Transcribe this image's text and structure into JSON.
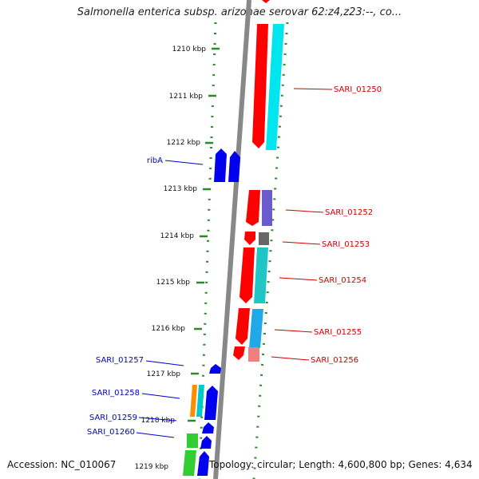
{
  "title": "Salmonella enterica subsp. arizonae serovar 62:z4,z23:--, co...",
  "accession": "Accession: NC_010067",
  "topology": "Topology: circular; Length: 4,600,800 bp; Genes: 4,634",
  "ticks": [
    "1210 kbp",
    "1211 kbp",
    "1212 kbp",
    "1213 kbp",
    "1214 kbp",
    "1215 kbp",
    "1216 kbp",
    "1217 kbp",
    "1218 kbp",
    "1219 kbp"
  ],
  "labels_right": [
    "SARI_01250",
    "SARI_01252",
    "SARI_01253",
    "SARI_01254",
    "SARI_01255",
    "SARI_01256"
  ],
  "labels_left": [
    "ribA",
    "SARI_01257",
    "SARI_01258",
    "SARI_01259",
    "SARI_01260"
  ],
  "colors": {
    "backbone": "#888888",
    "tick": "#2a8a2a",
    "label_right": "#cc0000",
    "label_left": "#0000cc",
    "forward_gene": "#ff0000",
    "reverse_gene": "#0000ee"
  }
}
